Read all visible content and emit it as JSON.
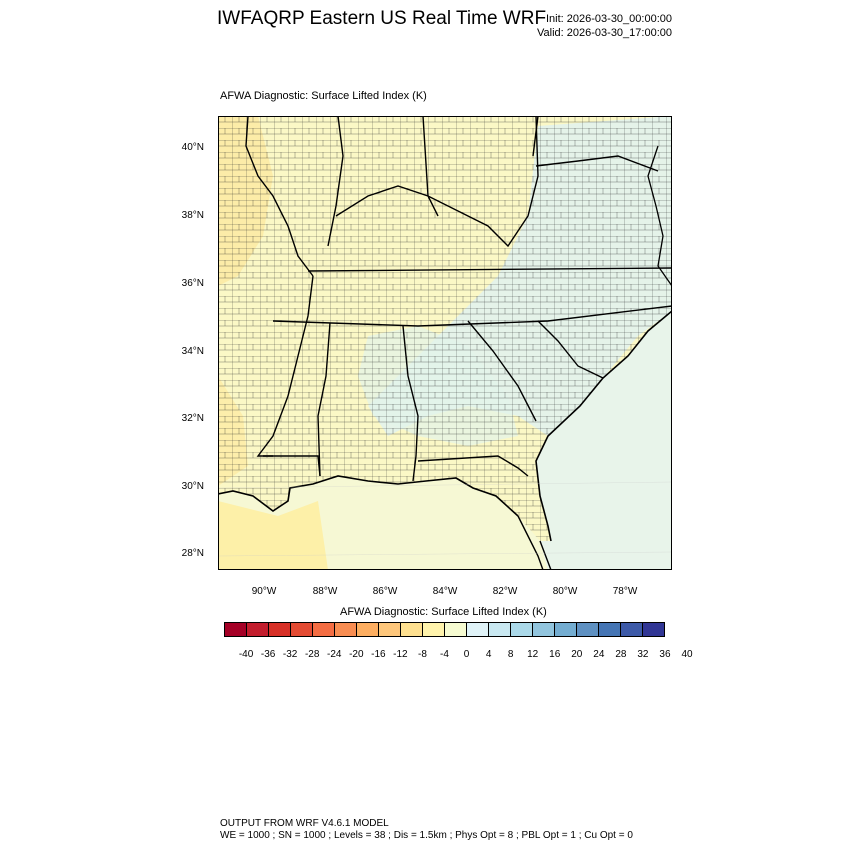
{
  "header": {
    "title": "IWFAQRP Eastern US Real Time WRF",
    "init": "Init: 2026-03-30_00:00:00",
    "valid": "Valid: 2026-03-30_17:00:00"
  },
  "map": {
    "subtitle": "AFWA Diagnostic: Surface Lifted Index   (K)",
    "lat_labels": [
      "40°N",
      "38°N",
      "36°N",
      "34°N",
      "32°N",
      "30°N",
      "28°N"
    ],
    "lon_labels": [
      "90°W",
      "88°W",
      "86°W",
      "84°W",
      "82°W",
      "80°W",
      "78°W"
    ],
    "colors": {
      "land_warm": "#fbf8c6",
      "land_warmer": "#fde9a0",
      "land_cool": "#e1f2ee",
      "ocean_cool": "#e8f4ea",
      "gulf_warm": "#fbf3b5"
    }
  },
  "colorbar": {
    "title": "AFWA Diagnostic: Surface Lifted Index  (K)",
    "colors": [
      "#a50026",
      "#c31d2d",
      "#d73027",
      "#e34b33",
      "#f46d43",
      "#f88d52",
      "#fdae61",
      "#fec77c",
      "#fee090",
      "#fff3ac",
      "#f6fbd1",
      "#e0f3f8",
      "#c9e8f1",
      "#abd9e9",
      "#92c5de",
      "#74add1",
      "#5f91c2",
      "#4575b4",
      "#3d5aa8",
      "#313695"
    ],
    "labels": [
      "-40",
      "-36",
      "-32",
      "-28",
      "-24",
      "-20",
      "-16",
      "-12",
      "-8",
      "-4",
      "0",
      "4",
      "8",
      "12",
      "16",
      "20",
      "24",
      "28",
      "32",
      "36",
      "40"
    ]
  },
  "footer": {
    "line1": "OUTPUT FROM WRF V4.6.1 MODEL",
    "line2": "WE = 1000 ; SN = 1000 ; Levels = 38 ; Dis = 1.5km ; Phys Opt = 8 ; PBL Opt = 1 ; Cu Opt = 0"
  }
}
